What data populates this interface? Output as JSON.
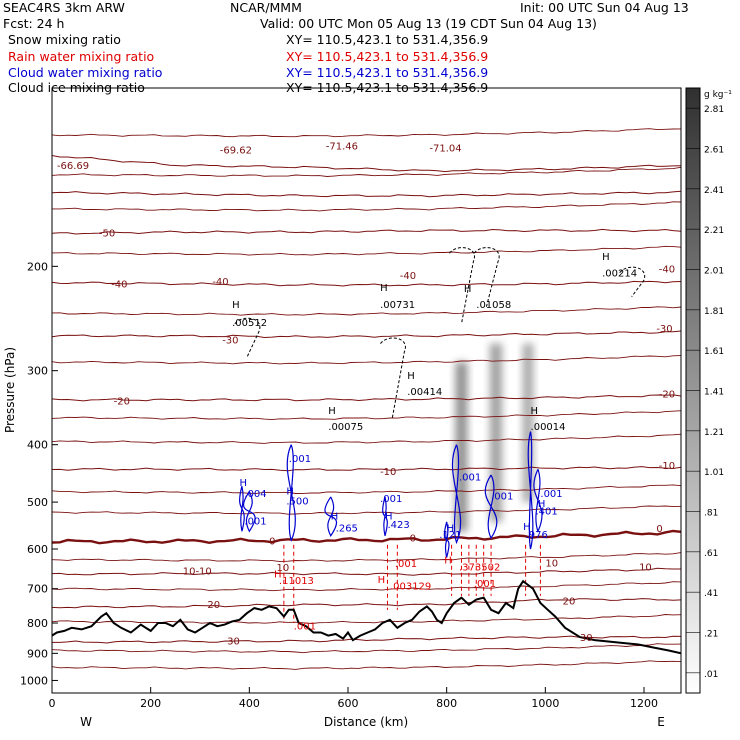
{
  "header": {
    "model": "SEAC4RS   3km ARW",
    "org": "NCAR/MMM",
    "init": "Init: 00 UTC Sun 04 Aug 13",
    "fcst": "Fcst:    24 h",
    "valid": "Valid: 00 UTC Mon 05 Aug 13 (19 CDT Sun 04 Aug 13)"
  },
  "legend": [
    {
      "label": "Snow mixing ratio",
      "xy": "XY=  110.5,423.1  to  531.4,356.9",
      "color": "#000000"
    },
    {
      "label": "Rain water mixing ratio",
      "xy": "XY=  110.5,423.1  to  531.4,356.9",
      "color": "#e00000"
    },
    {
      "label": "Cloud water mixing ratio",
      "xy": "XY=  110.5,423.1  to  531.4,356.9",
      "color": "#0000d0"
    },
    {
      "label": "Cloud ice mixing ratio",
      "xy": "XY=  110.5,423.1  to  531.4,356.9",
      "color": "#000000"
    }
  ],
  "colors": {
    "temperature": "#7a1010",
    "rain": "#e00000",
    "cloud": "#0000d0",
    "terrain": "#000000"
  },
  "chart_data": {
    "type": "line",
    "xlabel": "Distance (km)",
    "ylabel": "Pressure (hPa)",
    "xlim": [
      0,
      1275
    ],
    "ylim": [
      1050,
      100
    ],
    "y_scale": "log",
    "x_ticks": [
      0,
      200,
      400,
      600,
      800,
      1000,
      1200
    ],
    "y_ticks": [
      200,
      300,
      400,
      500,
      600,
      700,
      800,
      900,
      1000
    ],
    "x_ends": [
      "W",
      "E"
    ],
    "colorbar": {
      "units": "g kg⁻¹",
      "labels": [
        ".01",
        ".21",
        ".41",
        ".61",
        ".81",
        "1.01",
        "1.21",
        "1.41",
        "1.61",
        "1.81",
        "2.01",
        "2.21",
        "2.41",
        "2.61",
        "2.81"
      ]
    },
    "temperature_contours": [
      {
        "value": -70,
        "p": [
          130,
          135,
          136,
          138,
          137,
          135
        ]
      },
      {
        "value": -60,
        "p": [
          150,
          151,
          152,
          152,
          151,
          150
        ]
      },
      {
        "value": -50,
        "p": [
          176,
          175,
          175,
          174,
          174,
          174
        ]
      },
      {
        "value": -40,
        "p": [
          213,
          214,
          215,
          215,
          214,
          212
        ]
      },
      {
        "value": -30,
        "p": [
          262,
          262,
          263,
          262,
          260,
          258
        ]
      },
      {
        "value": -20,
        "p": [
          336,
          336,
          336,
          335,
          333,
          330
        ]
      },
      {
        "value": -10,
        "p": [
          440,
          440,
          441,
          440,
          438,
          437
        ]
      },
      {
        "value": 0,
        "p": [
          583,
          582,
          580,
          578,
          570,
          562
        ]
      },
      {
        "value": 10,
        "p": [
          662,
          660,
          660,
          662,
          655,
          648
        ]
      },
      {
        "value": 20,
        "p": [
          752,
          750,
          745,
          745,
          730,
          730
        ]
      },
      {
        "value": 30,
        "p": [
          862,
          860,
          858,
          850,
          845,
          845
        ]
      }
    ],
    "extra_isotherms_p": [
      120,
      140,
      160,
      190,
      240,
      290,
      360,
      395,
      480,
      520,
      625,
      700,
      795,
      890,
      950
    ],
    "labels": [
      {
        "text": "-66.69",
        "x": 10,
        "p": 137,
        "color": "#7a1010"
      },
      {
        "text": "-69.62",
        "x": 340,
        "p": 129,
        "color": "#7a1010"
      },
      {
        "text": "-71.46",
        "x": 555,
        "p": 127,
        "color": "#7a1010"
      },
      {
        "text": "-71.04",
        "x": 765,
        "p": 128,
        "color": "#7a1010"
      },
      {
        "text": "-50",
        "x": 95,
        "p": 178,
        "color": "#7a1010"
      },
      {
        "text": "-40",
        "x": 120,
        "p": 217,
        "color": "#7a1010"
      },
      {
        "text": "-40",
        "x": 325,
        "p": 215,
        "color": "#7a1010"
      },
      {
        "text": "-40",
        "x": 705,
        "p": 210,
        "color": "#7a1010"
      },
      {
        "text": "-40",
        "x": 1230,
        "p": 205,
        "color": "#7a1010"
      },
      {
        "text": "-30",
        "x": 345,
        "p": 270,
        "color": "#7a1010"
      },
      {
        "text": "-30",
        "x": 1225,
        "p": 258,
        "color": "#7a1010"
      },
      {
        "text": "-20",
        "x": 125,
        "p": 342,
        "color": "#7a1010"
      },
      {
        "text": "-20",
        "x": 1230,
        "p": 333,
        "color": "#7a1010"
      },
      {
        "text": "-10",
        "x": 665,
        "p": 450,
        "color": "#7a1010"
      },
      {
        "text": "-10",
        "x": 1230,
        "p": 440,
        "color": "#7a1010"
      },
      {
        "text": "0",
        "x": 440,
        "p": 590,
        "color": "#7a1010"
      },
      {
        "text": "0",
        "x": 725,
        "p": 583,
        "color": "#7a1010"
      },
      {
        "text": "0",
        "x": 1225,
        "p": 562,
        "color": "#7a1010"
      },
      {
        "text": "10-10",
        "x": 265,
        "p": 663,
        "color": "#7a1010"
      },
      {
        "text": "10",
        "x": 455,
        "p": 653,
        "color": "#7a1010"
      },
      {
        "text": "10",
        "x": 1000,
        "p": 642,
        "color": "#7a1010"
      },
      {
        "text": "10",
        "x": 1190,
        "p": 652,
        "color": "#7a1010"
      },
      {
        "text": "20",
        "x": 315,
        "p": 755,
        "color": "#7a1010"
      },
      {
        "text": "20",
        "x": 1035,
        "p": 745,
        "color": "#7a1010"
      },
      {
        "text": "30",
        "x": 355,
        "p": 870,
        "color": "#7a1010"
      },
      {
        "text": "30",
        "x": 1070,
        "p": 858,
        "color": "#7a1010"
      },
      {
        "text": "H",
        "x": 365,
        "p": 235,
        "color": "#000000"
      },
      {
        "text": ".00512",
        "x": 365,
        "p": 252,
        "color": "#000000"
      },
      {
        "text": "H",
        "x": 665,
        "p": 220,
        "color": "#000000"
      },
      {
        "text": ".00731",
        "x": 665,
        "p": 235,
        "color": "#000000"
      },
      {
        "text": "H",
        "x": 835,
        "p": 221,
        "color": "#000000"
      },
      {
        "text": ".01058",
        "x": 860,
        "p": 235,
        "color": "#000000"
      },
      {
        "text": "H",
        "x": 1115,
        "p": 195,
        "color": "#000000"
      },
      {
        "text": ".00214",
        "x": 1115,
        "p": 208,
        "color": "#000000"
      },
      {
        "text": "H",
        "x": 720,
        "p": 310,
        "color": "#000000"
      },
      {
        "text": ".00414",
        "x": 720,
        "p": 330,
        "color": "#000000"
      },
      {
        "text": "H",
        "x": 560,
        "p": 355,
        "color": "#000000"
      },
      {
        "text": ".00075",
        "x": 560,
        "p": 378,
        "color": "#000000"
      },
      {
        "text": "H",
        "x": 970,
        "p": 355,
        "color": "#000000"
      },
      {
        "text": ".00014",
        "x": 970,
        "p": 378,
        "color": "#000000"
      },
      {
        "text": ".001",
        "x": 480,
        "p": 428,
        "color": "#0000d0"
      },
      {
        "text": ".001",
        "x": 825,
        "p": 460,
        "color": "#0000d0"
      },
      {
        "text": ".001",
        "x": 890,
        "p": 495,
        "color": "#0000d0"
      },
      {
        "text": ".001",
        "x": 990,
        "p": 490,
        "color": "#0000d0"
      },
      {
        "text": "H",
        "x": 380,
        "p": 470,
        "color": "#0000d0"
      },
      {
        "text": ".004",
        "x": 390,
        "p": 490,
        "color": "#0000d0"
      },
      {
        "text": "H",
        "x": 475,
        "p": 485,
        "color": "#0000d0"
      },
      {
        "text": ".500",
        "x": 475,
        "p": 505,
        "color": "#0000d0"
      },
      {
        "text": ".001",
        "x": 390,
        "p": 545,
        "color": "#0000d0"
      },
      {
        "text": ".001",
        "x": 665,
        "p": 500,
        "color": "#0000d0"
      },
      {
        "text": "H",
        "x": 565,
        "p": 535,
        "color": "#0000d0"
      },
      {
        "text": ".265",
        "x": 575,
        "p": 560,
        "color": "#0000d0"
      },
      {
        "text": "H",
        "x": 675,
        "p": 535,
        "color": "#0000d0"
      },
      {
        "text": ".423",
        "x": 680,
        "p": 553,
        "color": "#0000d0"
      },
      {
        "text": "H",
        "x": 985,
        "p": 510,
        "color": "#0000d0"
      },
      {
        "text": ".401",
        "x": 980,
        "p": 525,
        "color": "#0000d0"
      },
      {
        "text": "H",
        "x": 800,
        "p": 560,
        "color": "#0000d0"
      },
      {
        "text": ".121",
        "x": 785,
        "p": 575,
        "color": "#0000d0"
      },
      {
        "text": "H",
        "x": 955,
        "p": 557,
        "color": "#0000d0"
      },
      {
        "text": ".976",
        "x": 960,
        "p": 575,
        "color": "#0000d0"
      },
      {
        "text": ".001",
        "x": 695,
        "p": 643,
        "color": "#e00000"
      },
      {
        "text": "H",
        "x": 795,
        "p": 635,
        "color": "#e00000"
      },
      {
        "text": ".373502",
        "x": 825,
        "p": 652,
        "color": "#e00000"
      },
      {
        "text": "H",
        "x": 450,
        "p": 670,
        "color": "#e00000"
      },
      {
        "text": ".11013",
        "x": 460,
        "p": 687,
        "color": "#e00000"
      },
      {
        "text": "H",
        "x": 660,
        "p": 685,
        "color": "#e00000"
      },
      {
        "text": ".003129",
        "x": 685,
        "p": 702,
        "color": "#e00000"
      },
      {
        "text": ".001",
        "x": 855,
        "p": 695,
        "color": "#e00000"
      },
      {
        "text": ".001",
        "x": 490,
        "p": 820,
        "color": "#e00000"
      }
    ],
    "terrain": {
      "x": [
        0,
        10,
        25,
        40,
        60,
        80,
        100,
        110,
        125,
        140,
        160,
        180,
        200,
        215,
        230,
        245,
        260,
        275,
        290,
        305,
        320,
        335,
        350,
        365,
        380,
        395,
        410,
        425,
        440,
        455,
        470,
        480,
        490,
        500,
        515,
        530,
        545,
        560,
        575,
        590,
        600,
        610,
        625,
        640,
        655,
        670,
        685,
        700,
        715,
        730,
        745,
        760,
        770,
        780,
        790,
        800,
        815,
        830,
        845,
        860,
        875,
        890,
        905,
        920,
        935,
        945,
        955,
        965,
        975,
        990,
        1005,
        1020,
        1040,
        1070,
        1100,
        1130,
        1160,
        1190,
        1220,
        1250,
        1275
      ],
      "p": [
        840,
        830,
        825,
        815,
        820,
        810,
        780,
        770,
        800,
        815,
        830,
        805,
        825,
        800,
        800,
        810,
        790,
        820,
        830,
        815,
        800,
        810,
        805,
        795,
        790,
        770,
        755,
        760,
        750,
        755,
        780,
        760,
        760,
        800,
        810,
        830,
        830,
        840,
        835,
        850,
        830,
        855,
        840,
        830,
        820,
        800,
        790,
        815,
        800,
        790,
        765,
        750,
        765,
        790,
        800,
        770,
        740,
        725,
        745,
        730,
        725,
        760,
        770,
        740,
        755,
        700,
        680,
        690,
        700,
        740,
        760,
        780,
        815,
        845,
        855,
        860,
        865,
        870,
        880,
        890,
        900
      ]
    },
    "snow_shading": [
      {
        "x": 830,
        "p_top": 290,
        "p_bottom": 560,
        "width_km": 25,
        "max": 1.4
      },
      {
        "x": 900,
        "p_top": 270,
        "p_bottom": 540,
        "width_km": 25,
        "max": 1.2
      },
      {
        "x": 965,
        "p_top": 270,
        "p_bottom": 500,
        "width_km": 22,
        "max": 1.1
      }
    ]
  }
}
